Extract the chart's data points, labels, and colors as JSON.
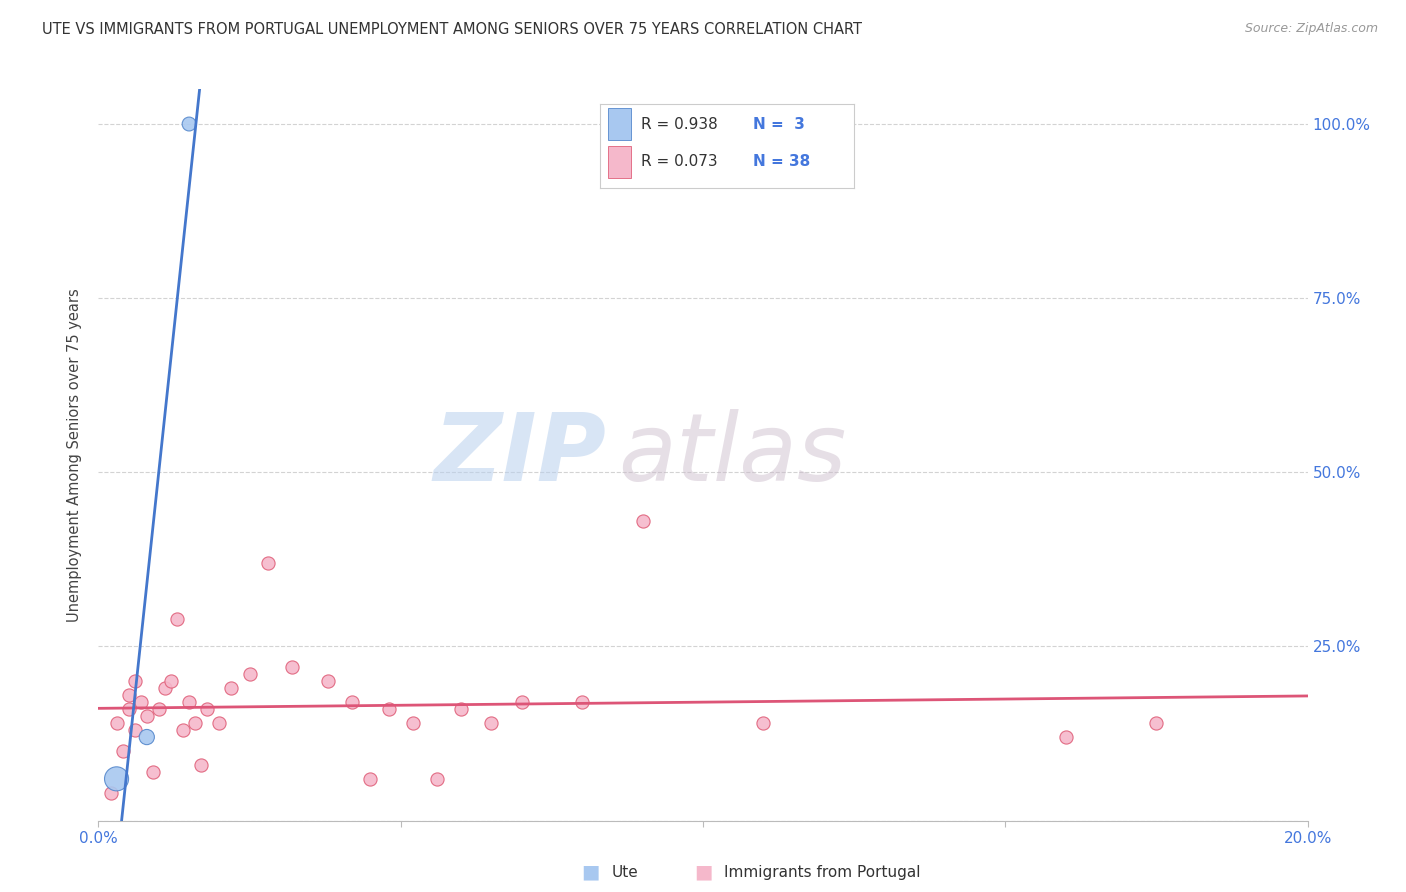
{
  "title": "UTE VS IMMIGRANTS FROM PORTUGAL UNEMPLOYMENT AMONG SENIORS OVER 75 YEARS CORRELATION CHART",
  "source": "Source: ZipAtlas.com",
  "ylabel": "Unemployment Among Seniors over 75 years",
  "xlim": [
    0.0,
    0.2
  ],
  "ylim": [
    0.0,
    1.05
  ],
  "xticks": [
    0.0,
    0.05,
    0.1,
    0.15,
    0.2
  ],
  "yticks": [
    0.0,
    0.25,
    0.5,
    0.75,
    1.0
  ],
  "background_color": "#ffffff",
  "grid_color": "#c8c8c8",
  "watermark_zip": "ZIP",
  "watermark_atlas": "atlas",
  "ute_color": "#a8c8f0",
  "portugal_color": "#f5b8cb",
  "ute_edge_color": "#5588cc",
  "portugal_edge_color": "#e0607a",
  "ute_line_color": "#4477cc",
  "portugal_line_color": "#dd5577",
  "legend_color": "#4477dd",
  "ute_R": "0.938",
  "ute_N": "3",
  "portugal_R": "0.073",
  "portugal_N": "38",
  "ute_points_x": [
    0.003,
    0.008,
    0.015
  ],
  "ute_points_y": [
    0.06,
    0.12,
    1.0
  ],
  "ute_sizes": [
    300,
    120,
    100
  ],
  "portugal_points_x": [
    0.002,
    0.003,
    0.004,
    0.005,
    0.005,
    0.006,
    0.006,
    0.007,
    0.008,
    0.009,
    0.01,
    0.011,
    0.012,
    0.013,
    0.014,
    0.015,
    0.016,
    0.017,
    0.018,
    0.02,
    0.022,
    0.025,
    0.028,
    0.032,
    0.038,
    0.042,
    0.045,
    0.048,
    0.052,
    0.056,
    0.06,
    0.065,
    0.07,
    0.08,
    0.09,
    0.11,
    0.16,
    0.175
  ],
  "portugal_points_y": [
    0.04,
    0.14,
    0.1,
    0.16,
    0.18,
    0.13,
    0.2,
    0.17,
    0.15,
    0.07,
    0.16,
    0.19,
    0.2,
    0.29,
    0.13,
    0.17,
    0.14,
    0.08,
    0.16,
    0.14,
    0.19,
    0.21,
    0.37,
    0.22,
    0.2,
    0.17,
    0.06,
    0.16,
    0.14,
    0.06,
    0.16,
    0.14,
    0.17,
    0.17,
    0.43,
    0.14,
    0.12,
    0.14
  ]
}
